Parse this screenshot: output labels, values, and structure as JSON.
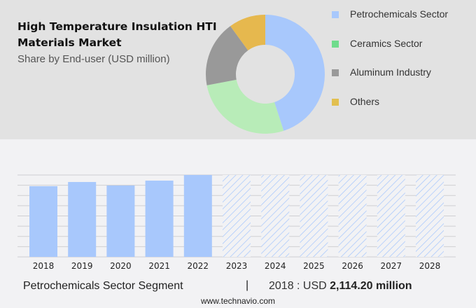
{
  "header": {
    "title": "High Temperature Insulation HTI Materials Market",
    "title_line1": "High Temperature Insulation HTI",
    "title_line2": "Materials Market",
    "subtitle": "Share by End-user (USD million)"
  },
  "legend": [
    {
      "label": "Petrochemicals Sector",
      "color": "#a8c8fc"
    },
    {
      "label": "Ceramics Sector",
      "color": "#6fdc8c"
    },
    {
      "label": "Aluminum Industry",
      "color": "#999999"
    },
    {
      "label": "Others",
      "color": "#e2c050"
    }
  ],
  "footer": {
    "segment": "Petrochemicals Sector Segment",
    "separator": "|",
    "value_prefix": "2018 : USD ",
    "value_bold": "2,114.20 million",
    "site": "www.technavio.com"
  },
  "chart_data": [
    {
      "type": "pie",
      "title": "Share by End-user (USD million)",
      "donut": true,
      "categories": [
        "Petrochemicals Sector",
        "Ceramics Sector",
        "Aluminum Industry",
        "Others"
      ],
      "values": [
        45,
        27,
        18,
        10
      ],
      "colors": [
        "#a8c8fc",
        "#b8ecb8",
        "#999999",
        "#e6b84e"
      ],
      "legend": "right"
    },
    {
      "type": "bar",
      "title": "Petrochemicals Sector Segment",
      "categories": [
        "2018",
        "2019",
        "2020",
        "2021",
        "2022",
        "2023",
        "2024",
        "2025",
        "2026",
        "2027",
        "2028"
      ],
      "values": [
        2114.2,
        2240,
        2135,
        2281,
        2449,
        null,
        null,
        null,
        null,
        null,
        null
      ],
      "forecast": [
        false,
        false,
        false,
        false,
        false,
        true,
        true,
        true,
        true,
        true,
        true
      ],
      "bar_color": "#a8c8fc",
      "ylim": [
        0,
        2449
      ],
      "grid": true,
      "gridlines": 9,
      "xlabel": "",
      "ylabel": ""
    }
  ]
}
